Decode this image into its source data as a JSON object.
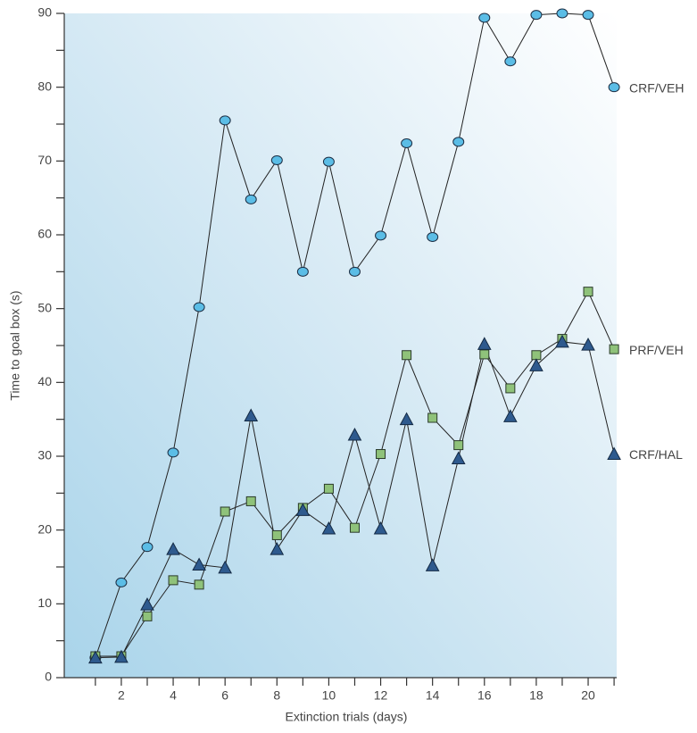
{
  "chart_data": {
    "type": "line",
    "x_label": "Extinction trials (days)",
    "y_label": "Time to goal box (s)",
    "x": [
      1,
      2,
      3,
      4,
      5,
      6,
      7,
      8,
      9,
      10,
      11,
      12,
      13,
      14,
      15,
      16,
      17,
      18,
      19,
      20,
      21
    ],
    "xlim": [
      -0.2,
      21.1
    ],
    "xticks": [
      2,
      4,
      6,
      8,
      10,
      12,
      14,
      16,
      18,
      20
    ],
    "xticks_minor": [
      1,
      3,
      5,
      7,
      9,
      11,
      13,
      15,
      17,
      19,
      21
    ],
    "ylim": [
      0,
      90
    ],
    "yticks": [
      0,
      10,
      20,
      30,
      40,
      50,
      60,
      70,
      80,
      90
    ],
    "yticks_minor": [
      5,
      15,
      25,
      35,
      45,
      55,
      65,
      75,
      85
    ],
    "series": [
      {
        "name": "CRF/VEH",
        "color": "#5bbde6",
        "marker": "circle",
        "values": [
          2.7,
          12.9,
          17.7,
          30.5,
          50.2,
          75.5,
          64.8,
          70.1,
          55,
          69.9,
          55,
          59.9,
          72.4,
          59.7,
          72.6,
          89.4,
          83.5,
          89.8,
          90,
          89.8,
          80
        ]
      },
      {
        "name": "PRF/VEH",
        "color": "#8fc27a",
        "marker": "square",
        "values": [
          2.9,
          2.9,
          8.3,
          13.2,
          12.6,
          22.5,
          23.9,
          19.3,
          23,
          25.6,
          20.3,
          30.3,
          43.7,
          35.2,
          31.5,
          43.8,
          39.2,
          43.7,
          45.9,
          52.3,
          44.5
        ]
      },
      {
        "name": "CRF/HAL",
        "color": "#2e5a8e",
        "marker": "triangle",
        "values": [
          2.7,
          2.8,
          9.9,
          17.4,
          15.3,
          14.9,
          35.5,
          17.4,
          22.7,
          20.2,
          32.9,
          20.2,
          35,
          15.2,
          29.7,
          45.2,
          35.4,
          42.3,
          45.5,
          45.1,
          30.3
        ]
      }
    ]
  }
}
